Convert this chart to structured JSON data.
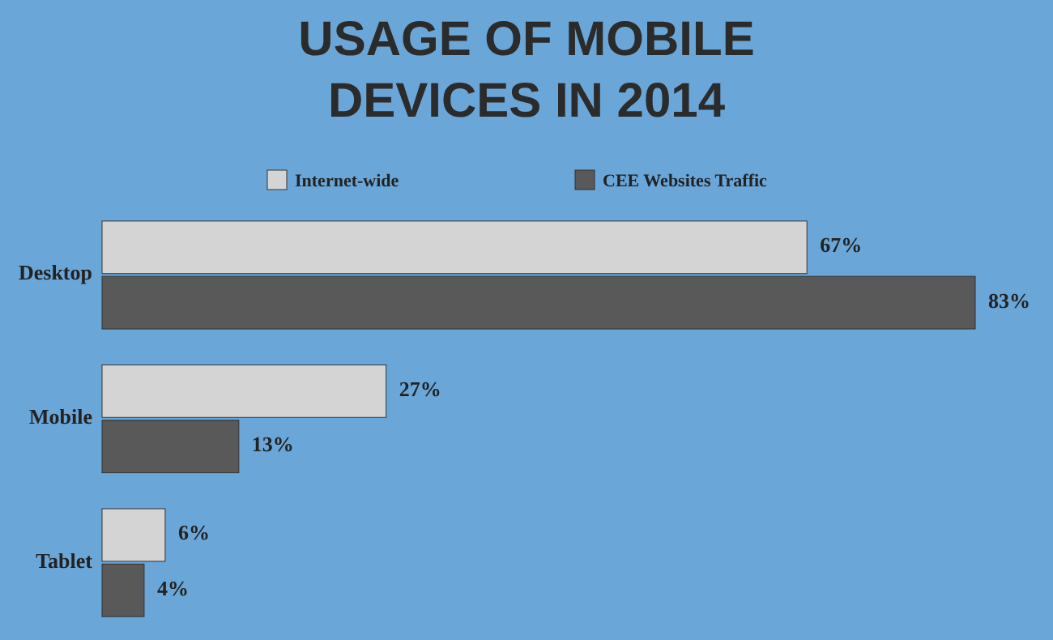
{
  "chart_data": {
    "type": "bar",
    "orientation": "horizontal",
    "title": "USAGE OF MOBILE\nDEVICES IN 2014",
    "categories": [
      "Desktop",
      "Mobile",
      "Tablet"
    ],
    "series": [
      {
        "name": "Internet-wide",
        "color": "#d4d4d4",
        "values": [
          67,
          27,
          6
        ],
        "value_labels": [
          "67%",
          "27%",
          "6%"
        ]
      },
      {
        "name": "CEE Websites Traffic",
        "color": "#595959",
        "values": [
          83,
          13,
          4
        ],
        "value_labels": [
          "83%",
          "13%",
          "4%"
        ]
      }
    ],
    "legend": "top",
    "grid": false
  }
}
